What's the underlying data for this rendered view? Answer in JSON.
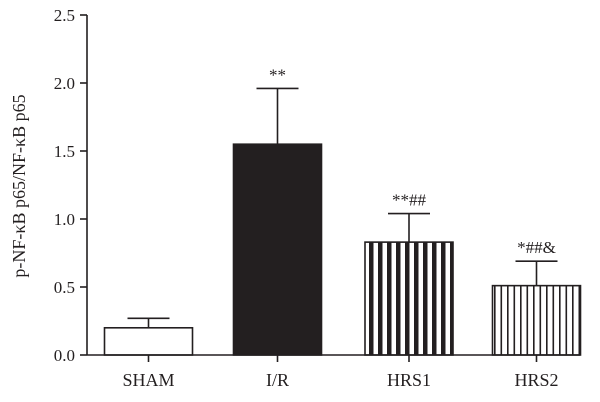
{
  "chart_data": {
    "type": "bar",
    "title": "",
    "xlabel": "",
    "ylabel": "p-NF-κB p65/NF-κB p65",
    "ylim": [
      0,
      2.5
    ],
    "yticks": [
      "0.0",
      "0.5",
      "1.0",
      "1.5",
      "2.0",
      "2.5"
    ],
    "grid": false,
    "categories": [
      "SHAM",
      "I/R",
      "HRS1",
      "HRS2"
    ],
    "values": [
      0.2,
      1.55,
      0.83,
      0.51
    ],
    "errors": [
      0.07,
      0.41,
      0.21,
      0.18
    ],
    "annotations": [
      "",
      "**",
      "**##",
      "*##&"
    ],
    "fills": [
      "white",
      "black",
      "thick-vertical-stripes",
      "thin-vertical-stripes"
    ],
    "colors": {
      "ink": "#231f20",
      "background": "#ffffff"
    }
  }
}
